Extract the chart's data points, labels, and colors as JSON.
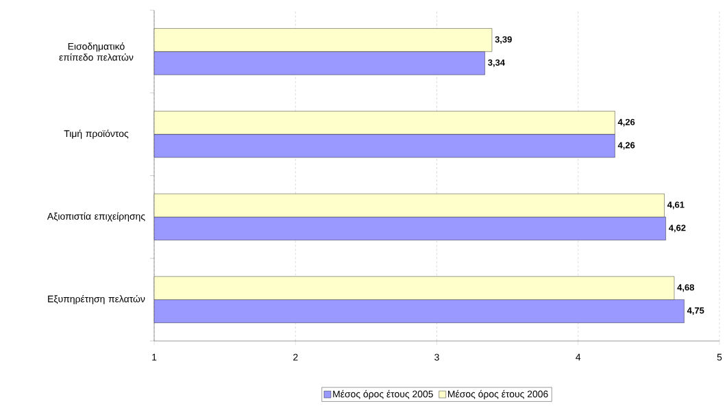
{
  "chart_data": {
    "type": "bar",
    "orientation": "horizontal",
    "categories": [
      "Εισοδηματικό επίπεδο πελατών",
      "Τιμή προϊόντος",
      "Αξιοπιστία επιχείρησης",
      "Εξυπηρέτηση πελατών"
    ],
    "series": [
      {
        "name": "Μέσος όρος έτους 2005",
        "color": "#9999ff",
        "values": [
          3.34,
          4.26,
          4.62,
          4.75
        ],
        "value_labels": [
          "3,34",
          "4,26",
          "4,62",
          "4,75"
        ]
      },
      {
        "name": "Μέσος όρος έτους 2006",
        "color": "#ffffcc",
        "values": [
          3.39,
          4.26,
          4.61,
          4.68
        ],
        "value_labels": [
          "3,39",
          "4,26",
          "4,61",
          "4,68"
        ]
      }
    ],
    "xlim": [
      1,
      5
    ],
    "xticks": [
      1,
      2,
      3,
      4,
      5
    ],
    "grid": "x",
    "legend": "bottom"
  }
}
